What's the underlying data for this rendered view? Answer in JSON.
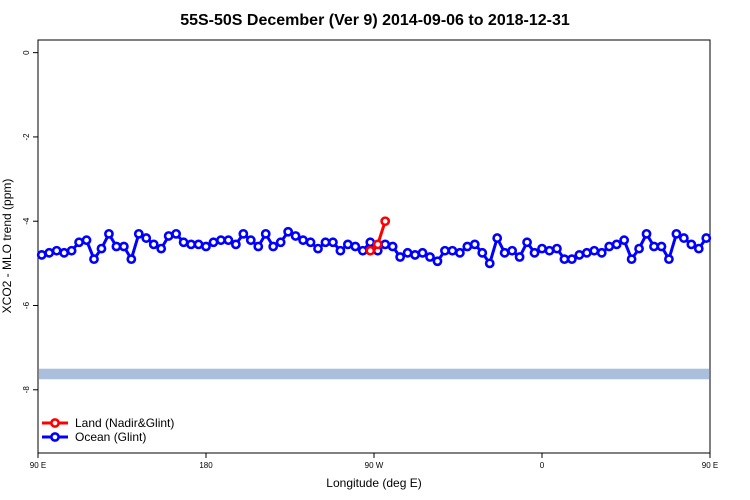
{
  "chart_data": {
    "type": "line",
    "title": "55S-50S December (Ver 9)   2014-09-06 to 2018-12-31",
    "xlabel": "Longitude (deg E)",
    "ylabel": "XCO2 - MLO trend (ppm)",
    "xlim": [
      90,
      450
    ],
    "ylim": [
      -9.5,
      0.3
    ],
    "x_ticks": [
      {
        "value": 90,
        "label": "90 E"
      },
      {
        "value": 180,
        "label": "180"
      },
      {
        "value": 270,
        "label": "90 W"
      },
      {
        "value": 360,
        "label": "0"
      },
      {
        "value": 450,
        "label": "90 E"
      },
      {
        "value": 540,
        "label": "180"
      }
    ],
    "y_ticks": [
      {
        "value": 0,
        "label": "0"
      },
      {
        "value": -2,
        "label": "-2"
      },
      {
        "value": -4,
        "label": "-4"
      },
      {
        "value": -6,
        "label": "-6"
      },
      {
        "value": -8,
        "label": "-8"
      }
    ],
    "x_scale_note": "",
    "grid": false,
    "legend_position": "bottom-left",
    "land_band": {
      "y_from": -7.75,
      "y_to": -7.5,
      "color": "#a9bfdc"
    },
    "series": [
      {
        "name": "Land (Nadir&Glint)",
        "color": "#ff0000",
        "x": [
          268,
          272,
          276
        ],
        "y": [
          -4.7,
          -4.55,
          -4.0
        ]
      },
      {
        "name": "Ocean (Glint)",
        "color": "#0000ff",
        "x": [
          92,
          96,
          100,
          104,
          108,
          112,
          116,
          120,
          124,
          128,
          132,
          136,
          140,
          144,
          148,
          152,
          156,
          160,
          164,
          168,
          172,
          176,
          180,
          184,
          188,
          192,
          196,
          200,
          204,
          208,
          212,
          216,
          220,
          224,
          228,
          232,
          236,
          240,
          244,
          248,
          252,
          256,
          260,
          264,
          268,
          272,
          276,
          280,
          284,
          288,
          292,
          296,
          300,
          304,
          308,
          312,
          316,
          320,
          324,
          328,
          332,
          336,
          340,
          344,
          348,
          352,
          356,
          360,
          364,
          368,
          372,
          376,
          380,
          384,
          388,
          392,
          396,
          400,
          404,
          408,
          412,
          416,
          420,
          424,
          428,
          432,
          436,
          440,
          444,
          448
        ],
        "y": [
          -4.8,
          -4.75,
          -4.7,
          -4.75,
          -4.7,
          -4.5,
          -4.45,
          -4.9,
          -4.65,
          -4.3,
          -4.6,
          -4.6,
          -4.9,
          -4.3,
          -4.4,
          -4.55,
          -4.65,
          -4.35,
          -4.3,
          -4.5,
          -4.55,
          -4.55,
          -4.6,
          -4.5,
          -4.45,
          -4.45,
          -4.55,
          -4.3,
          -4.45,
          -4.6,
          -4.3,
          -4.6,
          -4.5,
          -4.25,
          -4.35,
          -4.45,
          -4.5,
          -4.65,
          -4.5,
          -4.5,
          -4.7,
          -4.55,
          -4.6,
          -4.7,
          -4.5,
          -4.7,
          -4.55,
          -4.6,
          -4.85,
          -4.75,
          -4.8,
          -4.75,
          -4.85,
          -4.95,
          -4.7,
          -4.7,
          -4.75,
          -4.6,
          -4.55,
          -4.75,
          -5.0,
          -4.4,
          -4.75,
          -4.7,
          -4.85,
          -4.5,
          -4.75,
          -4.65,
          -4.7,
          -4.65,
          -4.9,
          -4.9,
          -4.8,
          -4.75,
          -4.7,
          -4.75,
          -4.6,
          -4.55,
          -4.45,
          -4.9,
          -4.65,
          -4.3,
          -4.6,
          -4.6,
          -4.9,
          -4.3,
          -4.4,
          -4.55,
          -4.65,
          -4.4
        ]
      }
    ]
  }
}
